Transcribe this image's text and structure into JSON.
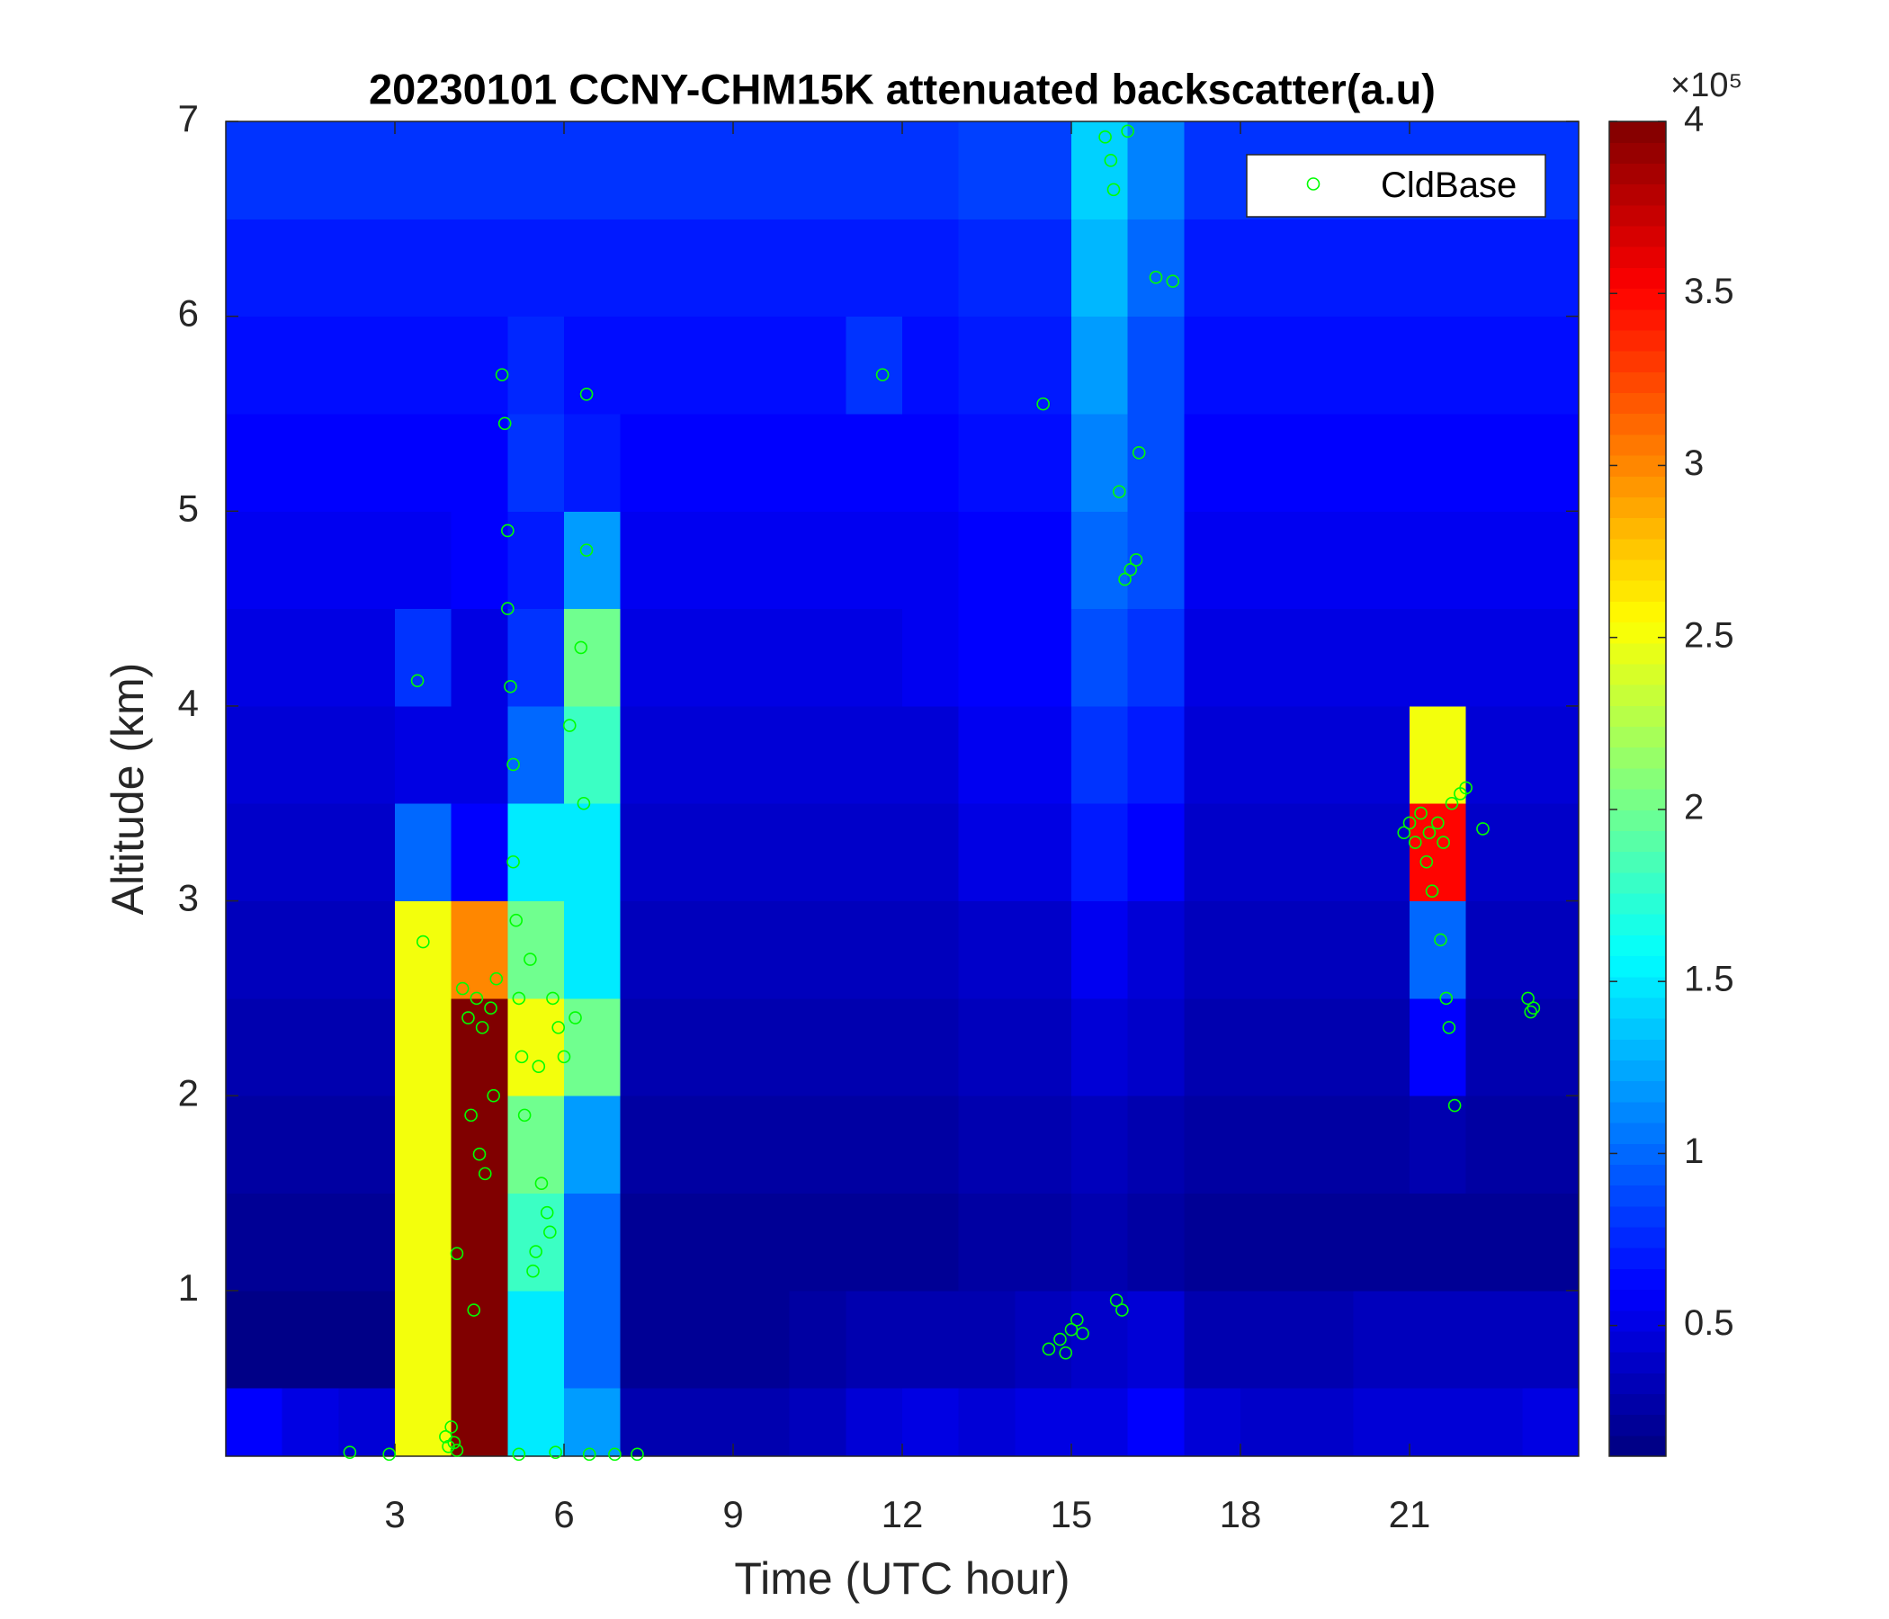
{
  "chart_data": {
    "type": "heatmap",
    "title": "20230101 CCNY-CHM15K attenuated backscatter(a.u)",
    "xlabel": "Time (UTC hour)",
    "ylabel": "Altitude (km)",
    "xlim": [
      0,
      24
    ],
    "ylim": [
      0.15,
      7
    ],
    "xticks": [
      3,
      6,
      9,
      12,
      15,
      18,
      21
    ],
    "yticks": [
      1,
      2,
      3,
      4,
      5,
      6,
      7
    ],
    "colormap": "jet",
    "clim": [
      0.12,
      4
    ],
    "cticks": [
      0.5,
      1,
      1.5,
      2,
      2.5,
      3,
      3.5,
      4
    ],
    "colorbar_label": "×10⁵",
    "x_bins": [
      0,
      1,
      2,
      3,
      4,
      5,
      6,
      7,
      8,
      9,
      10,
      11,
      12,
      13,
      14,
      15,
      16,
      17,
      18,
      19,
      20,
      21,
      22,
      23,
      24
    ],
    "y_bins": [
      0.15,
      0.5,
      1,
      1.5,
      2,
      2.5,
      3,
      3.5,
      4,
      4.5,
      5,
      5.5,
      6,
      6.5,
      7
    ],
    "z": [
      [
        0.6,
        0.5,
        0.45,
        2.5,
        4,
        1.5,
        1.2,
        0.3,
        0.3,
        0.3,
        0.35,
        0.45,
        0.5,
        0.45,
        0.5,
        0.5,
        0.6,
        0.45,
        0.4,
        0.4,
        0.45,
        0.45,
        0.45,
        0.5
      ],
      [
        0.15,
        0.15,
        0.15,
        2.5,
        4,
        1.5,
        1,
        0.2,
        0.2,
        0.2,
        0.25,
        0.3,
        0.3,
        0.3,
        0.35,
        0.4,
        0.45,
        0.3,
        0.3,
        0.3,
        0.35,
        0.35,
        0.35,
        0.35
      ],
      [
        0.2,
        0.2,
        0.2,
        2.5,
        4,
        1.8,
        1,
        0.2,
        0.2,
        0.2,
        0.2,
        0.2,
        0.2,
        0.25,
        0.25,
        0.3,
        0.25,
        0.2,
        0.2,
        0.2,
        0.2,
        0.2,
        0.2,
        0.2
      ],
      [
        0.25,
        0.25,
        0.25,
        2.5,
        4,
        2,
        1.2,
        0.25,
        0.25,
        0.25,
        0.25,
        0.25,
        0.25,
        0.3,
        0.3,
        0.35,
        0.3,
        0.25,
        0.25,
        0.25,
        0.25,
        0.3,
        0.25,
        0.25
      ],
      [
        0.3,
        0.3,
        0.3,
        2.5,
        4,
        2.5,
        2,
        0.3,
        0.3,
        0.3,
        0.3,
        0.3,
        0.3,
        0.35,
        0.35,
        0.45,
        0.4,
        0.3,
        0.3,
        0.3,
        0.3,
        0.6,
        0.3,
        0.3
      ],
      [
        0.35,
        0.35,
        0.35,
        2.5,
        3,
        2,
        1.5,
        0.35,
        0.35,
        0.35,
        0.35,
        0.35,
        0.35,
        0.4,
        0.4,
        0.55,
        0.45,
        0.35,
        0.35,
        0.35,
        0.35,
        1,
        0.35,
        0.35
      ],
      [
        0.4,
        0.4,
        0.4,
        1,
        0.6,
        1.5,
        1.5,
        0.4,
        0.4,
        0.4,
        0.4,
        0.4,
        0.4,
        0.5,
        0.5,
        0.7,
        0.6,
        0.4,
        0.4,
        0.4,
        0.4,
        3.5,
        0.4,
        0.4
      ],
      [
        0.45,
        0.45,
        0.45,
        0.5,
        0.5,
        1,
        1.8,
        0.45,
        0.45,
        0.45,
        0.45,
        0.45,
        0.45,
        0.55,
        0.55,
        0.8,
        0.7,
        0.45,
        0.45,
        0.45,
        0.45,
        2.5,
        0.45,
        0.45
      ],
      [
        0.5,
        0.5,
        0.5,
        0.8,
        0.5,
        0.8,
        2,
        0.5,
        0.5,
        0.5,
        0.5,
        0.5,
        0.55,
        0.6,
        0.6,
        0.9,
        0.8,
        0.5,
        0.5,
        0.5,
        0.5,
        0.5,
        0.5,
        0.5
      ],
      [
        0.55,
        0.55,
        0.55,
        0.55,
        0.6,
        0.7,
        1.2,
        0.55,
        0.55,
        0.55,
        0.55,
        0.55,
        0.55,
        0.6,
        0.6,
        1,
        0.9,
        0.55,
        0.55,
        0.55,
        0.55,
        0.55,
        0.55,
        0.55
      ],
      [
        0.6,
        0.6,
        0.6,
        0.6,
        0.6,
        0.8,
        0.7,
        0.6,
        0.6,
        0.6,
        0.6,
        0.6,
        0.6,
        0.65,
        0.65,
        1.1,
        0.9,
        0.6,
        0.6,
        0.6,
        0.6,
        0.6,
        0.6,
        0.6
      ],
      [
        0.65,
        0.65,
        0.65,
        0.65,
        0.65,
        0.75,
        0.65,
        0.65,
        0.65,
        0.65,
        0.65,
        0.8,
        0.65,
        0.7,
        0.7,
        1.2,
        0.9,
        0.65,
        0.65,
        0.65,
        0.65,
        0.65,
        0.65,
        0.65
      ],
      [
        0.7,
        0.7,
        0.7,
        0.7,
        0.7,
        0.7,
        0.7,
        0.7,
        0.7,
        0.7,
        0.7,
        0.7,
        0.7,
        0.75,
        0.75,
        1.3,
        1,
        0.7,
        0.7,
        0.7,
        0.7,
        0.7,
        0.7,
        0.7
      ],
      [
        0.8,
        0.8,
        0.8,
        0.8,
        0.8,
        0.8,
        0.8,
        0.8,
        0.8,
        0.8,
        0.8,
        0.8,
        0.8,
        0.85,
        0.85,
        1.4,
        1.1,
        0.8,
        0.8,
        0.8,
        0.8,
        0.8,
        0.8,
        0.8
      ]
    ],
    "legend": "upper right",
    "series": [
      {
        "name": "CldBase",
        "type": "scatter",
        "color": "#00ff00",
        "marker": "circle-open",
        "x": [
          2.2,
          2.9,
          3.4,
          3.5,
          3.9,
          3.95,
          4.0,
          4.05,
          4.1,
          4.1,
          4.2,
          4.3,
          4.35,
          4.4,
          4.45,
          4.5,
          4.55,
          4.6,
          4.7,
          4.75,
          4.8,
          4.9,
          4.95,
          5.0,
          5.0,
          5.05,
          5.1,
          5.1,
          5.15,
          5.2,
          5.2,
          5.25,
          5.3,
          5.4,
          5.45,
          5.5,
          5.55,
          5.6,
          5.7,
          5.75,
          5.8,
          5.85,
          5.9,
          6.0,
          6.1,
          6.2,
          6.3,
          6.35,
          6.4,
          6.4,
          6.45,
          6.9,
          7.3,
          11.65,
          14.5,
          14.6,
          14.8,
          14.9,
          15.0,
          15.1,
          15.2,
          15.6,
          15.7,
          15.75,
          15.8,
          15.85,
          15.9,
          15.95,
          16.0,
          16.05,
          16.15,
          16.2,
          16.5,
          16.8,
          20.9,
          21.0,
          21.1,
          21.2,
          21.3,
          21.35,
          21.4,
          21.5,
          21.55,
          21.6,
          21.65,
          21.7,
          21.75,
          21.8,
          21.9,
          22.0,
          22.3,
          23.1,
          23.15,
          23.2
        ],
        "y": [
          0.17,
          0.16,
          4.13,
          2.79,
          0.25,
          0.2,
          0.3,
          0.22,
          0.18,
          1.19,
          2.55,
          2.4,
          1.9,
          0.9,
          2.5,
          1.7,
          2.35,
          1.6,
          2.45,
          2.0,
          2.6,
          5.7,
          5.45,
          4.9,
          4.5,
          4.1,
          3.7,
          3.2,
          2.9,
          2.5,
          0.16,
          2.2,
          1.9,
          2.7,
          1.1,
          1.2,
          2.15,
          1.55,
          1.4,
          1.3,
          2.5,
          0.17,
          2.35,
          2.2,
          3.9,
          2.4,
          4.3,
          3.5,
          5.6,
          4.8,
          0.16,
          0.16,
          0.16,
          5.7,
          5.55,
          0.7,
          0.75,
          0.68,
          0.8,
          0.85,
          0.78,
          6.92,
          6.8,
          6.65,
          0.95,
          5.1,
          0.9,
          4.65,
          6.95,
          4.7,
          4.75,
          5.3,
          6.2,
          6.18,
          3.35,
          3.4,
          3.3,
          3.45,
          3.2,
          3.35,
          3.05,
          3.4,
          2.8,
          3.3,
          2.5,
          2.35,
          3.5,
          1.95,
          3.55,
          3.58,
          3.37,
          2.5,
          2.43,
          2.45
        ]
      }
    ]
  }
}
